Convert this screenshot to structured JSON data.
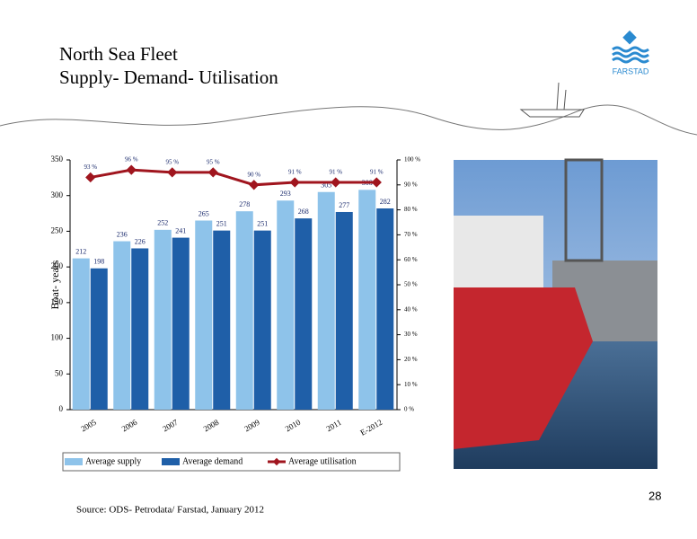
{
  "slide": {
    "title_lines": [
      "North Sea Fleet",
      "Supply- Demand- Utilisation"
    ],
    "logo": "FARSTAD",
    "source": "Source: ODS- Petrodata/ Farstad, January 2012",
    "page_number": "28"
  },
  "chart_data": {
    "type": "bar",
    "y_label": "Boat- years",
    "categories": [
      "2005",
      "2006",
      "2007",
      "2008",
      "2009",
      "2010",
      "2011",
      "E-2012"
    ],
    "series": [
      {
        "name": "Average supply",
        "color": "#8ec3ea",
        "values": [
          212,
          236,
          252,
          265,
          278,
          293,
          305,
          308
        ]
      },
      {
        "name": "Average demand",
        "color": "#1f5fa8",
        "values": [
          198,
          226,
          241,
          251,
          251,
          268,
          277,
          282
        ]
      },
      {
        "name": "Average utilisation",
        "type": "line",
        "axis": "y2",
        "color": "#a0151e",
        "values": [
          93,
          96,
          95,
          95,
          90,
          91,
          91,
          91
        ],
        "value_labels": [
          "93 %",
          "96 %",
          "95 %",
          "95 %",
          "90 %",
          "91 %",
          "91 %",
          "91 %"
        ]
      }
    ],
    "ylim": [
      0,
      350
    ],
    "yticks": [
      0,
      50,
      100,
      150,
      200,
      250,
      300,
      350
    ],
    "y2lim": [
      0,
      100
    ],
    "y2ticks": [
      {
        "value": 0,
        "label": "0 %"
      },
      {
        "value": 10,
        "label": "10 %"
      },
      {
        "value": 20,
        "label": "20 %"
      },
      {
        "value": 30,
        "label": "30 %"
      },
      {
        "value": 40,
        "label": "40 %"
      },
      {
        "value": 50,
        "label": "50 %"
      },
      {
        "value": 60,
        "label": "60 %"
      },
      {
        "value": 70,
        "label": "70 %"
      },
      {
        "value": 80,
        "label": "80 %"
      },
      {
        "value": 90,
        "label": "90 %"
      },
      {
        "value": 100,
        "label": "100 %"
      }
    ],
    "legend": "bottom"
  }
}
